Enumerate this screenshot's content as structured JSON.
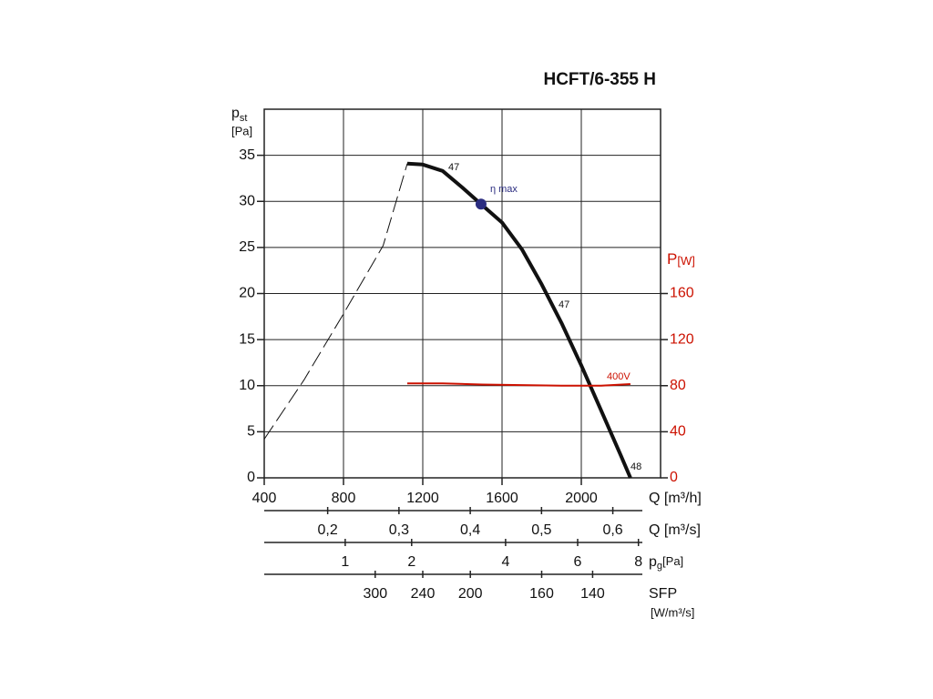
{
  "chart_data": {
    "type": "line",
    "title": "HCFT/6-355 H",
    "xlabel": "Q [m³/h]",
    "ylabel": "p",
    "ylabel_sub": "st",
    "ylabel_unit": "[Pa]",
    "y2label": "P",
    "y2label_unit": "[W]",
    "xlim": [
      400,
      2400
    ],
    "xticks": [
      400,
      800,
      1200,
      1600,
      2000
    ],
    "ylim": [
      0,
      40
    ],
    "yticks": [
      0,
      5,
      10,
      15,
      20,
      25,
      30,
      35
    ],
    "y2lim": [
      0,
      320
    ],
    "y2ticks": [
      0,
      40,
      80,
      120,
      160
    ],
    "y2color": "#cc1100",
    "grid": true,
    "series": [
      {
        "color": "#111111",
        "dash": false,
        "width": 4,
        "x": [
          1122,
          1200,
          1300,
          1400,
          1494,
          1600,
          1700,
          1800,
          1900,
          2000,
          2100,
          2200,
          2248
        ],
        "values": [
          34.1,
          34.0,
          33.3,
          31.5,
          29.7,
          27.7,
          24.8,
          21.0,
          16.8,
          12.2,
          7.3,
          2.4,
          0
        ]
      },
      {
        "color": "#111111",
        "dash": true,
        "width": 1,
        "x": [
          400,
          600,
          800,
          1000,
          1122
        ],
        "values": [
          4.2,
          10.6,
          17.8,
          25.2,
          34.1
        ]
      },
      {
        "color": "#cc1100",
        "dash": false,
        "width": 2,
        "axis": "y2",
        "x": [
          1122,
          1300,
          1500,
          1700,
          1900,
          2100,
          2248
        ],
        "values": [
          82,
          82,
          81,
          80.5,
          80,
          80,
          81.4
        ]
      }
    ],
    "points": [
      {
        "x": 1494,
        "y": 29.7,
        "label": "η max",
        "color": "#2b2d80"
      }
    ],
    "annotations": [
      {
        "text": "47",
        "color": "#111111"
      },
      {
        "text": "47",
        "color": "#111111"
      },
      {
        "text": "48",
        "color": "#111111"
      },
      {
        "text": "400V",
        "color": "#cc1100"
      }
    ],
    "extra_axes": [
      {
        "label": "Q [m³/s]",
        "scale": "linear",
        "xlim": [
          0.111,
          0.667
        ],
        "ticks": [
          {
            "value": 0.2,
            "label": "0,2"
          },
          {
            "value": 0.3,
            "label": "0,3"
          },
          {
            "value": 0.4,
            "label": "0,4"
          },
          {
            "value": 0.5,
            "label": "0,5"
          },
          {
            "value": 0.6,
            "label": "0,6"
          }
        ]
      },
      {
        "label": "p",
        "label_sub": "g",
        "label_unit": "[Pa]",
        "scale": "sqrt",
        "xlim": [
          0.245,
          8.8
        ],
        "ticks": [
          1,
          2,
          4,
          6,
          8
        ]
      },
      {
        "label": "SFP",
        "label_unit": "[W/m³/s]",
        "scale": "reciprocal",
        "xlim": [
          720,
          120
        ],
        "ticks": [
          300,
          240,
          200,
          160,
          140
        ]
      }
    ]
  }
}
